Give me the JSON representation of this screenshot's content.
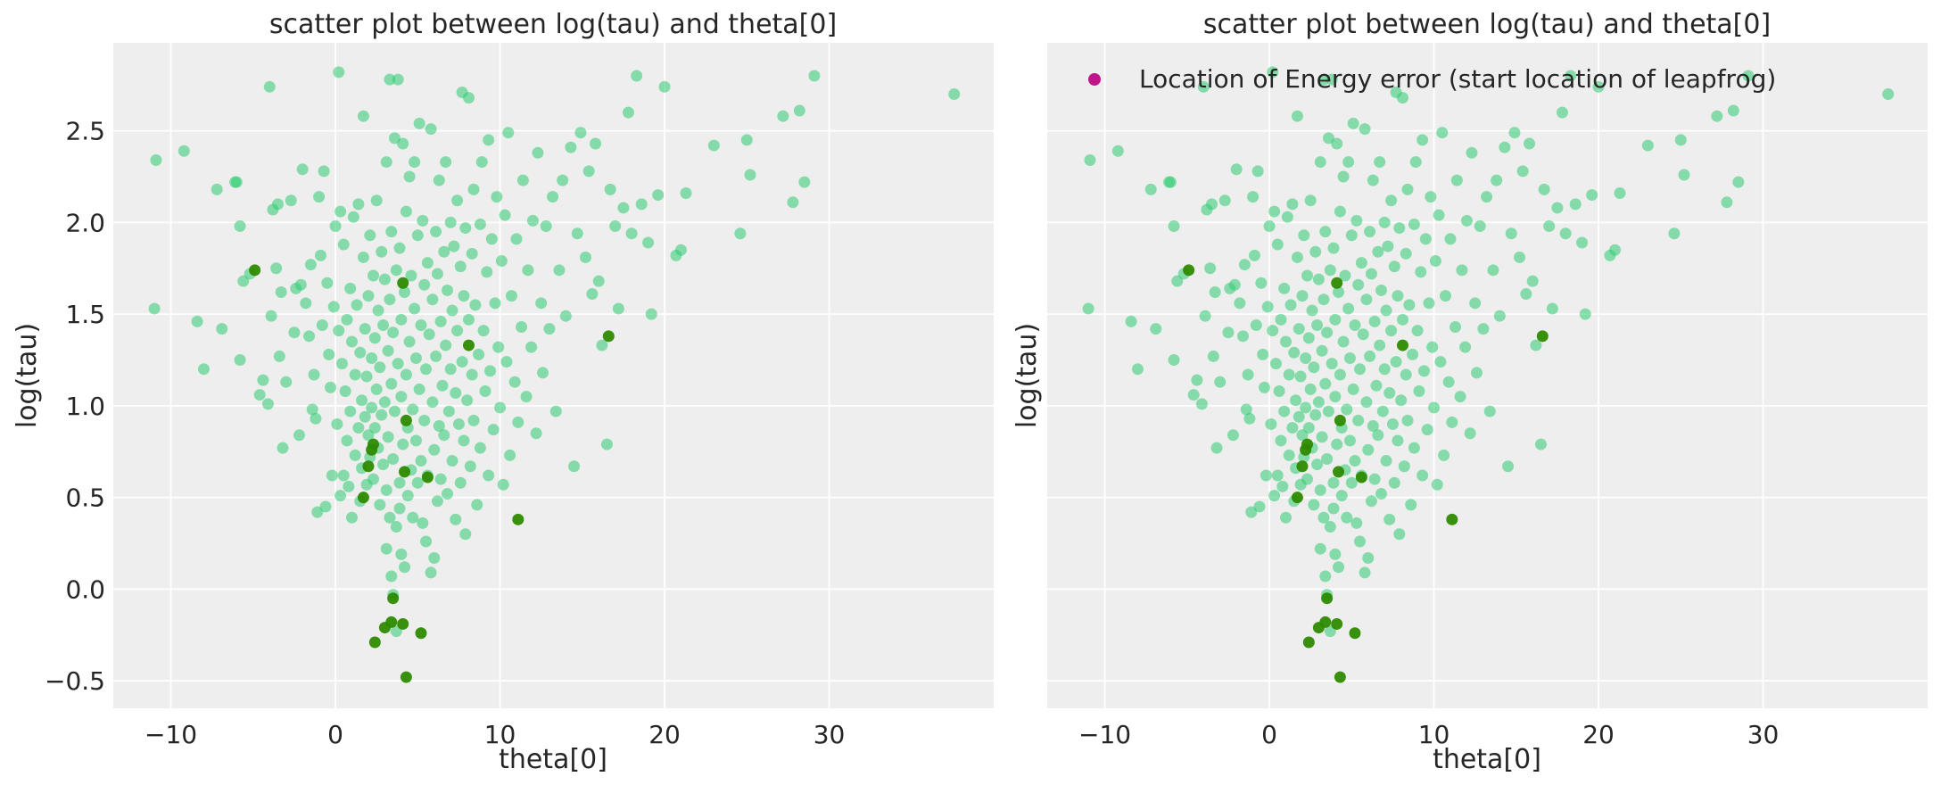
{
  "figure": {
    "background": "#ffffff"
  },
  "style": {
    "axes_bg": "#eeeeee",
    "grid": "#ffffff",
    "text": "#262626",
    "sample_color": "#2ecc71",
    "divergence_color": "#2d8a00",
    "energy_color": "#c0168c"
  },
  "chart_data": [
    {
      "type": "scatter",
      "title": "scatter plot between log(tau) and theta[0]",
      "xlabel": "theta[0]",
      "ylabel": "log(tau)",
      "xlim": [
        -13.5,
        40
      ],
      "ylim": [
        -0.65,
        2.98
      ],
      "xticks": [
        -10,
        0,
        10,
        20,
        30
      ],
      "xtick_labels": [
        "−10",
        "0",
        "10",
        "20",
        "30"
      ],
      "yticks": [
        -0.5,
        0.0,
        0.5,
        1.0,
        1.5,
        2.0,
        2.5
      ],
      "ytick_labels": [
        "−0.5",
        "0.0",
        "0.5",
        "1.0",
        "1.5",
        "2.0",
        "2.5"
      ],
      "show_ytick_labels": true,
      "grid": true,
      "legend": null
    },
    {
      "type": "scatter",
      "title": "scatter plot between log(tau) and theta[0]",
      "xlabel": "theta[0]",
      "ylabel": "log(tau)",
      "xlim": [
        -13.5,
        40
      ],
      "ylim": [
        -0.65,
        2.98
      ],
      "xticks": [
        -10,
        0,
        10,
        20,
        30
      ],
      "xtick_labels": [
        "−10",
        "0",
        "10",
        "20",
        "30"
      ],
      "yticks": [
        -0.5,
        0.0,
        0.5,
        1.0,
        1.5,
        2.0,
        2.5
      ],
      "ytick_labels": [
        "−0.5",
        "0.0",
        "0.5",
        "1.0",
        "1.5",
        "2.0",
        "2.5"
      ],
      "show_ytick_labels": false,
      "grid": true,
      "legend": {
        "placement": "top-left",
        "entries": [
          {
            "label": "Location of Energy error (start location of leapfrog)",
            "color": "#c0168c"
          }
        ]
      }
    }
  ],
  "samples": [
    [
      -11,
      1.53
    ],
    [
      -10.9,
      2.34
    ],
    [
      -9.2,
      2.39
    ],
    [
      -8.4,
      1.46
    ],
    [
      -8,
      1.2
    ],
    [
      -7.2,
      2.18
    ],
    [
      -6.9,
      1.42
    ],
    [
      -6.1,
      2.22
    ],
    [
      -6,
      2.22
    ],
    [
      -5.8,
      1.98
    ],
    [
      -5.8,
      1.25
    ],
    [
      -5.6,
      1.68
    ],
    [
      -5.2,
      1.72
    ],
    [
      -4.6,
      1.06
    ],
    [
      -4.4,
      1.14
    ],
    [
      -4.1,
      1.01
    ],
    [
      -4,
      2.74
    ],
    [
      -3.9,
      1.49
    ],
    [
      -3.8,
      2.07
    ],
    [
      -3.6,
      1.75
    ],
    [
      -3.5,
      2.1
    ],
    [
      -3.4,
      1.27
    ],
    [
      -3.3,
      1.62
    ],
    [
      -3.2,
      0.77
    ],
    [
      -3,
      1.13
    ],
    [
      -2.7,
      2.12
    ],
    [
      -2.5,
      1.4
    ],
    [
      -2.4,
      1.64
    ],
    [
      -2.2,
      0.84
    ],
    [
      -2.1,
      1.66
    ],
    [
      -2,
      2.29
    ],
    [
      -1.8,
      1.56
    ],
    [
      -1.6,
      1.38
    ],
    [
      -1.5,
      1.77
    ],
    [
      -1.4,
      0.98
    ],
    [
      -1.3,
      1.17
    ],
    [
      -1.2,
      0.93
    ],
    [
      -1.1,
      0.42
    ],
    [
      -1,
      2.14
    ],
    [
      -0.9,
      1.82
    ],
    [
      -0.8,
      1.44
    ],
    [
      -0.7,
      2.28
    ],
    [
      -0.6,
      0.45
    ],
    [
      -0.5,
      1.67
    ],
    [
      -0.4,
      1.28
    ],
    [
      -0.3,
      1.1
    ],
    [
      -0.2,
      0.62
    ],
    [
      -0.1,
      1.54
    ],
    [
      0,
      1.98
    ],
    [
      0.1,
      0.9
    ],
    [
      0.2,
      2.82
    ],
    [
      0.2,
      1.41
    ],
    [
      0.3,
      2.06
    ],
    [
      0.3,
      0.51
    ],
    [
      0.4,
      1.23
    ],
    [
      0.5,
      1.88
    ],
    [
      0.5,
      0.62
    ],
    [
      0.6,
      1.08
    ],
    [
      0.7,
      0.81
    ],
    [
      0.7,
      1.47
    ],
    [
      0.8,
      0.56
    ],
    [
      0.9,
      1.64
    ],
    [
      0.9,
      0.97
    ],
    [
      1,
      1.35
    ],
    [
      1,
      0.39
    ],
    [
      1.1,
      2.03
    ],
    [
      1.2,
      0.73
    ],
    [
      1.2,
      1.17
    ],
    [
      1.3,
      1.55
    ],
    [
      1.4,
      0.88
    ],
    [
      1.4,
      2.1
    ],
    [
      1.5,
      0.48
    ],
    [
      1.5,
      1.29
    ],
    [
      1.6,
      1.03
    ],
    [
      1.6,
      0.66
    ],
    [
      1.7,
      1.81
    ],
    [
      1.7,
      2.58
    ],
    [
      1.8,
      0.94
    ],
    [
      1.8,
      1.42
    ],
    [
      1.9,
      0.57
    ],
    [
      1.9,
      1.16
    ],
    [
      2,
      1.6
    ],
    [
      2,
      0.84
    ],
    [
      2.1,
      1.93
    ],
    [
      2.1,
      0.72
    ],
    [
      2.2,
      1.26
    ],
    [
      2.2,
      0.99
    ],
    [
      2.3,
      1.71
    ],
    [
      2.3,
      0.6
    ],
    [
      2.4,
      1.37
    ],
    [
      2.4,
      0.88
    ],
    [
      2.5,
      2.12
    ],
    [
      2.5,
      1.09
    ],
    [
      2.6,
      0.77
    ],
    [
      2.6,
      1.52
    ],
    [
      2.7,
      0.46
    ],
    [
      2.7,
      1.21
    ],
    [
      2.8,
      1.84
    ],
    [
      2.8,
      0.95
    ],
    [
      2.9,
      0.68
    ],
    [
      2.9,
      1.44
    ],
    [
      3,
      1.69
    ],
    [
      3,
      1.02
    ],
    [
      3.1,
      0.54
    ],
    [
      3.1,
      2.33
    ],
    [
      3.1,
      0.22
    ],
    [
      3.2,
      1.3
    ],
    [
      3.2,
      0.83
    ],
    [
      3.3,
      2.78
    ],
    [
      3.3,
      1.58
    ],
    [
      3.3,
      0.39
    ],
    [
      3.4,
      1.12
    ],
    [
      3.4,
      1.95
    ],
    [
      3.4,
      0.07
    ],
    [
      3.5,
      0.71
    ],
    [
      3.5,
      1.4
    ],
    [
      3.5,
      -0.03
    ],
    [
      3.6,
      2.46
    ],
    [
      3.6,
      0.97
    ],
    [
      3.7,
      1.74
    ],
    [
      3.7,
      0.34
    ],
    [
      3.7,
      -0.23
    ],
    [
      3.8,
      2.78
    ],
    [
      3.8,
      1.23
    ],
    [
      3.9,
      0.58
    ],
    [
      3.9,
      1.86
    ],
    [
      3.9,
      0.44
    ],
    [
      4,
      1.05
    ],
    [
      4,
      1.47
    ],
    [
      4,
      0.19
    ],
    [
      4.1,
      2.43
    ],
    [
      4.1,
      0.79
    ],
    [
      4.2,
      1.62
    ],
    [
      4.2,
      0.12
    ],
    [
      4.3,
      1.17
    ],
    [
      4.3,
      2.06
    ],
    [
      4.4,
      0.51
    ],
    [
      4.4,
      0.88
    ],
    [
      4.5,
      1.35
    ],
    [
      4.5,
      2.25
    ],
    [
      4.6,
      0.65
    ],
    [
      4.6,
      1.71
    ],
    [
      4.7,
      0.98
    ],
    [
      4.7,
      0.39
    ],
    [
      4.8,
      1.53
    ],
    [
      4.8,
      2.33
    ],
    [
      4.9,
      0.81
    ],
    [
      4.9,
      1.26
    ],
    [
      5,
      1.93
    ],
    [
      5,
      0.58
    ],
    [
      5.1,
      2.54
    ],
    [
      5.1,
      1.09
    ],
    [
      5.2,
      0.7
    ],
    [
      5.2,
      1.44
    ],
    [
      5.3,
      0.36
    ],
    [
      5.3,
      2.01
    ],
    [
      5.4,
      1.66
    ],
    [
      5.4,
      0.92
    ],
    [
      5.5,
      1.2
    ],
    [
      5.5,
      0.26
    ],
    [
      5.6,
      1.78
    ],
    [
      5.6,
      0.62
    ],
    [
      5.7,
      1.39
    ],
    [
      5.8,
      0.09
    ],
    [
      5.8,
      2.51
    ],
    [
      5.9,
      1.02
    ],
    [
      5.9,
      1.58
    ],
    [
      6,
      0.76
    ],
    [
      6,
      0.17
    ],
    [
      6.1,
      1.95
    ],
    [
      6.1,
      1.27
    ],
    [
      6.2,
      0.48
    ],
    [
      6.2,
      1.72
    ],
    [
      6.3,
      0.89
    ],
    [
      6.3,
      2.23
    ],
    [
      6.4,
      1.46
    ],
    [
      6.4,
      0.6
    ],
    [
      6.5,
      1.11
    ],
    [
      6.6,
      1.84
    ],
    [
      6.6,
      0.84
    ],
    [
      6.7,
      2.33
    ],
    [
      6.7,
      1.33
    ],
    [
      6.8,
      0.52
    ],
    [
      6.8,
      1.63
    ],
    [
      6.9,
      0.97
    ],
    [
      7,
      2
    ],
    [
      7,
      1.2
    ],
    [
      7.1,
      0.7
    ],
    [
      7.1,
      1.52
    ],
    [
      7.2,
      1.87
    ],
    [
      7.3,
      0.38
    ],
    [
      7.3,
      1.07
    ],
    [
      7.4,
      2.12
    ],
    [
      7.4,
      1.41
    ],
    [
      7.5,
      0.9
    ],
    [
      7.6,
      1.76
    ],
    [
      7.6,
      0.58
    ],
    [
      7.7,
      2.71
    ],
    [
      7.7,
      1.24
    ],
    [
      7.8,
      0.81
    ],
    [
      7.8,
      1.6
    ],
    [
      7.9,
      1.97
    ],
    [
      7.9,
      0.3
    ],
    [
      8,
      1.03
    ],
    [
      8.1,
      2.68
    ],
    [
      8.1,
      1.47
    ],
    [
      8.2,
      0.67
    ],
    [
      8.3,
      1.83
    ],
    [
      8.3,
      1.17
    ],
    [
      8.4,
      2.18
    ],
    [
      8.4,
      0.92
    ],
    [
      8.5,
      1.55
    ],
    [
      8.6,
      0.46
    ],
    [
      8.7,
      1.28
    ],
    [
      8.8,
      1.99
    ],
    [
      8.8,
      0.77
    ],
    [
      8.9,
      2.33
    ],
    [
      9,
      1.41
    ],
    [
      9.1,
      1.08
    ],
    [
      9.2,
      1.73
    ],
    [
      9.3,
      0.62
    ],
    [
      9.3,
      2.45
    ],
    [
      9.4,
      1.19
    ],
    [
      9.5,
      1.91
    ],
    [
      9.6,
      0.87
    ],
    [
      9.7,
      1.56
    ],
    [
      9.8,
      2.14
    ],
    [
      9.9,
      1.32
    ],
    [
      10,
      0.99
    ],
    [
      10.1,
      1.79
    ],
    [
      10.2,
      0.57
    ],
    [
      10.3,
      2.04
    ],
    [
      10.4,
      1.24
    ],
    [
      10.5,
      2.49
    ],
    [
      10.6,
      0.73
    ],
    [
      10.7,
      1.6
    ],
    [
      10.9,
      1.13
    ],
    [
      11,
      1.91
    ],
    [
      11.1,
      0.91
    ],
    [
      11.3,
      1.43
    ],
    [
      11.4,
      2.23
    ],
    [
      11.6,
      1.05
    ],
    [
      11.7,
      1.74
    ],
    [
      11.9,
      1.32
    ],
    [
      12,
      2.01
    ],
    [
      12.2,
      0.85
    ],
    [
      12.3,
      2.38
    ],
    [
      12.5,
      1.56
    ],
    [
      12.6,
      1.18
    ],
    [
      12.8,
      1.98
    ],
    [
      13,
      1.42
    ],
    [
      13.2,
      2.14
    ],
    [
      13.4,
      0.97
    ],
    [
      13.6,
      1.74
    ],
    [
      13.8,
      2.23
    ],
    [
      14,
      1.49
    ],
    [
      14.3,
      2.41
    ],
    [
      14.5,
      0.67
    ],
    [
      14.7,
      1.94
    ],
    [
      14.9,
      2.49
    ],
    [
      15.2,
      1.81
    ],
    [
      15.4,
      2.28
    ],
    [
      15.6,
      1.61
    ],
    [
      15.8,
      2.43
    ],
    [
      16,
      1.68
    ],
    [
      16.2,
      1.33
    ],
    [
      16.5,
      0.79
    ],
    [
      16.7,
      2.18
    ],
    [
      17,
      1.98
    ],
    [
      17.2,
      1.53
    ],
    [
      17.5,
      2.08
    ],
    [
      17.8,
      2.6
    ],
    [
      18,
      1.94
    ],
    [
      18.3,
      2.8
    ],
    [
      18.6,
      2.1
    ],
    [
      19,
      1.89
    ],
    [
      19.2,
      1.5
    ],
    [
      19.6,
      2.15
    ],
    [
      20,
      2.74
    ],
    [
      20.7,
      1.82
    ],
    [
      21,
      1.85
    ],
    [
      21.3,
      2.16
    ],
    [
      23,
      2.42
    ],
    [
      24.6,
      1.94
    ],
    [
      25,
      2.45
    ],
    [
      25.2,
      2.26
    ],
    [
      27.2,
      2.58
    ],
    [
      27.8,
      2.11
    ],
    [
      28.2,
      2.61
    ],
    [
      28.5,
      2.22
    ],
    [
      29.1,
      2.8
    ],
    [
      37.6,
      2.7
    ]
  ],
  "divergent": [
    [
      -4.9,
      1.74
    ],
    [
      1.7,
      0.5
    ],
    [
      2,
      0.67
    ],
    [
      2.2,
      0.76
    ],
    [
      2.3,
      0.79
    ],
    [
      2.4,
      -0.29
    ],
    [
      3,
      -0.21
    ],
    [
      3.4,
      -0.18
    ],
    [
      3.5,
      -0.05
    ],
    [
      4.1,
      -0.19
    ],
    [
      4.1,
      1.67
    ],
    [
      4.2,
      0.64
    ],
    [
      4.3,
      0.92
    ],
    [
      4.3,
      -0.48
    ],
    [
      5.2,
      -0.24
    ],
    [
      5.6,
      0.61
    ],
    [
      8.1,
      1.33
    ],
    [
      11.1,
      0.38
    ],
    [
      16.6,
      1.38
    ]
  ]
}
